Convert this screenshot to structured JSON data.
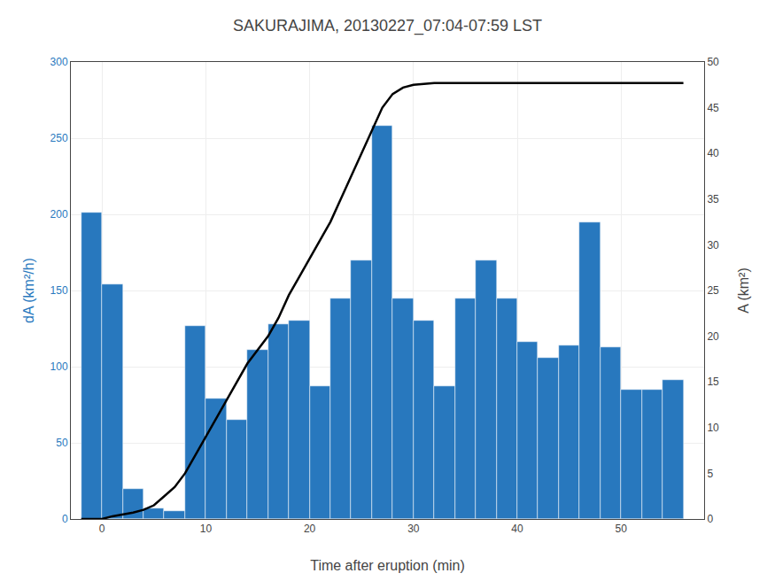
{
  "chart_data": {
    "type": "bar",
    "title": "SAKURAJIMA, 20130227_07:04-07:59 LST",
    "xlabel": "Time after eruption (min)",
    "ylabel": "dA (km²/h)",
    "y2label": "A (km²)",
    "series": [
      {
        "type": "bar",
        "color": "#2878BE",
        "x": [
          -1,
          1,
          3,
          5,
          7,
          9,
          11,
          13,
          15,
          17,
          19,
          21,
          23,
          25,
          27,
          29,
          31,
          33,
          35,
          37,
          39,
          41,
          43,
          45,
          47,
          49,
          51,
          53,
          55
        ],
        "values": [
          201,
          154,
          20,
          7,
          5,
          127,
          79,
          65,
          111,
          128,
          130,
          87,
          145,
          170,
          258,
          145,
          130,
          87,
          145,
          170,
          145,
          116,
          106,
          114,
          195,
          113,
          85,
          85,
          91
        ]
      },
      {
        "type": "line",
        "axis": "y2",
        "color": "#000000",
        "x": [
          -2,
          -1,
          0,
          1,
          2,
          3,
          4,
          5,
          6,
          7,
          8,
          9,
          10,
          11,
          12,
          13,
          14,
          15,
          16,
          17,
          18,
          19,
          20,
          21,
          22,
          23,
          24,
          25,
          26,
          27,
          28,
          29,
          30,
          31,
          32,
          33,
          34,
          35,
          36,
          37,
          38,
          39,
          40,
          41,
          42,
          43,
          44,
          45,
          46,
          47,
          55,
          56
        ],
        "values": [
          0,
          0,
          0,
          0.3,
          0.5,
          0.7,
          1.0,
          1.5,
          2.5,
          3.5,
          5.0,
          7.0,
          9.0,
          11.0,
          13.0,
          15.0,
          17.0,
          18.5,
          20.0,
          22.0,
          24.5,
          26.5,
          28.5,
          30.5,
          32.5,
          35.0,
          37.5,
          40.0,
          42.5,
          45.0,
          46.5,
          47.2,
          47.5,
          47.6,
          47.7,
          47.7,
          47.7,
          47.7,
          47.7,
          47.7,
          47.7,
          47.7,
          47.7,
          47.7,
          47.7,
          47.7,
          47.7,
          47.7,
          47.7,
          47.7,
          47.7,
          47.7
        ]
      }
    ],
    "xlim": [
      -3,
      58
    ],
    "xticks": [
      0,
      10,
      20,
      30,
      40,
      50
    ],
    "ylim": [
      0,
      300
    ],
    "yticks": [
      0,
      50,
      100,
      150,
      200,
      250,
      300
    ],
    "y2lim": [
      0,
      50
    ],
    "y2ticks": [
      0,
      5,
      10,
      15,
      20,
      25,
      30,
      35,
      40,
      45,
      50
    ],
    "grid": true
  }
}
